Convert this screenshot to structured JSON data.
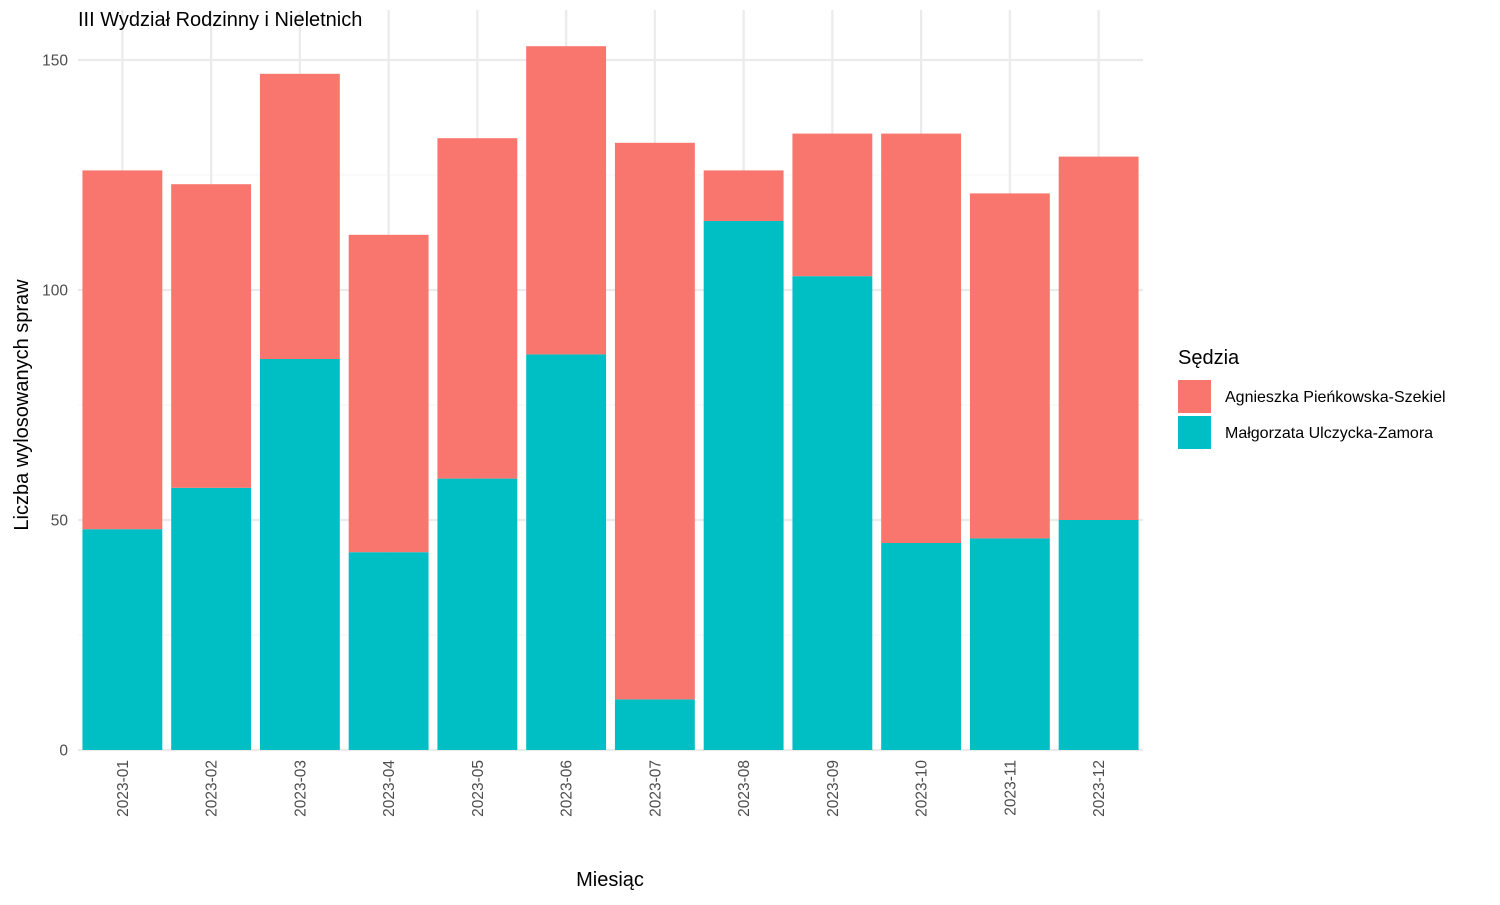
{
  "chart_data": {
    "type": "bar",
    "stacked": true,
    "title": "III Wydział Rodzinny i Nieletnich",
    "xlabel": "Miesiąc",
    "ylabel": "Liczba wylosowanych spraw",
    "categories": [
      "2023-01",
      "2023-02",
      "2023-03",
      "2023-04",
      "2023-05",
      "2023-06",
      "2023-07",
      "2023-08",
      "2023-09",
      "2023-10",
      "2023-11",
      "2023-12"
    ],
    "series": [
      {
        "name": "Małgorzata Ulczycka-Zamora",
        "color": "#00BFC4",
        "values": [
          48,
          57,
          85,
          43,
          59,
          86,
          11,
          115,
          103,
          45,
          46,
          50
        ]
      },
      {
        "name": "Agnieszka Pieńkowska-Szekiel",
        "color": "#F8766D",
        "values": [
          78,
          66,
          62,
          69,
          74,
          67,
          121,
          11,
          31,
          89,
          75,
          79
        ]
      }
    ],
    "ylim": [
      0,
      160
    ],
    "yticks": [
      0,
      50,
      100,
      150
    ],
    "grid": true,
    "legend": {
      "title": "Sędzia",
      "placement": "right",
      "entries": [
        "Agnieszka Pieńkowska-Szekiel",
        "Małgorzata Ulczycka-Zamora"
      ]
    }
  }
}
